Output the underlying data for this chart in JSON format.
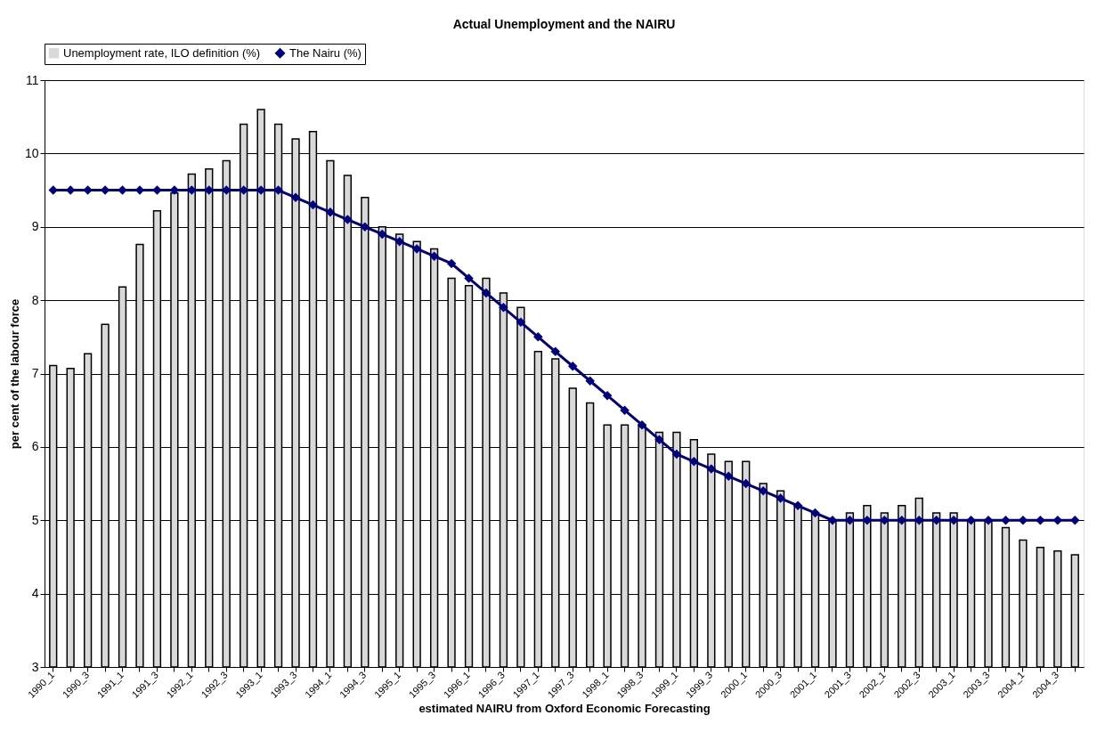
{
  "chart_data": {
    "type": "bar",
    "title": "Actual Unemployment and the NAIRU",
    "xlabel": "estimated NAIRU from Oxford Economic Forecasting",
    "ylabel": "per cent of the labour force",
    "categories": [
      "1990_1",
      null,
      "1990_3",
      null,
      "1991_1",
      null,
      "1991_3",
      null,
      "1992_1",
      null,
      "1992_3",
      null,
      "1993_1",
      null,
      "1993_3",
      null,
      "1994_1",
      null,
      "1994_3",
      null,
      "1995_1",
      null,
      "1995_3",
      null,
      "1996_1",
      null,
      "1996_3",
      null,
      "1997_1",
      null,
      "1997_3",
      null,
      "1998_1",
      null,
      "1998_3",
      null,
      "1999_1",
      null,
      "1999_3",
      null,
      "2000_1",
      null,
      "2000_3",
      null,
      "2001_1",
      null,
      "2001_3",
      null,
      "2002_1",
      null,
      "2002_3",
      null,
      "2003_1",
      null,
      "2003_3",
      null,
      "2004_1",
      null,
      "2004_3",
      null
    ],
    "series": [
      {
        "name": "Unemployment rate, ILO definition  (%)",
        "color": "#d9d9d9",
        "values": [
          7.11,
          7.07,
          7.27,
          7.67,
          8.18,
          8.76,
          9.22,
          9.46,
          9.72,
          9.79,
          9.9,
          10.4,
          10.6,
          10.4,
          10.2,
          10.3,
          9.9,
          9.7,
          9.4,
          9.0,
          8.9,
          8.8,
          8.7,
          8.3,
          8.2,
          8.3,
          8.1,
          7.9,
          7.3,
          7.2,
          6.8,
          6.6,
          6.3,
          6.3,
          6.3,
          6.2,
          6.2,
          6.1,
          5.9,
          5.8,
          5.8,
          5.5,
          5.4,
          5.2,
          5.1,
          5.0,
          5.1,
          5.2,
          5.1,
          5.2,
          5.3,
          5.1,
          5.1,
          5.0,
          5.0,
          4.9,
          4.73,
          4.63,
          4.58,
          4.53
        ]
      },
      {
        "name": "The Nairu (%)",
        "type": "line",
        "color": "#000080",
        "marker": "diamond",
        "line_style": "solid",
        "values": [
          9.5,
          9.5,
          9.5,
          9.5,
          9.5,
          9.5,
          9.5,
          9.5,
          9.5,
          9.5,
          9.5,
          9.5,
          9.5,
          9.5,
          9.4,
          9.3,
          9.2,
          9.1,
          9.0,
          8.9,
          8.8,
          8.7,
          8.6,
          8.5,
          8.3,
          8.1,
          7.9,
          7.7,
          7.5,
          7.3,
          7.1,
          6.9,
          6.7,
          6.5,
          6.3,
          6.1,
          5.9,
          5.8,
          5.7,
          5.6,
          5.5,
          5.4,
          5.3,
          5.2,
          5.1,
          5.0,
          5.0,
          5.0,
          5.0,
          5.0,
          5.0,
          5.0,
          5.0,
          5.0,
          5.0,
          5.0,
          5.0,
          5.0,
          5.0,
          5.0
        ]
      }
    ],
    "ylim": [
      3,
      11
    ],
    "yticks": [
      3,
      4,
      5,
      6,
      7,
      8,
      9,
      10,
      11
    ],
    "grid": "y",
    "legend": "top"
  }
}
